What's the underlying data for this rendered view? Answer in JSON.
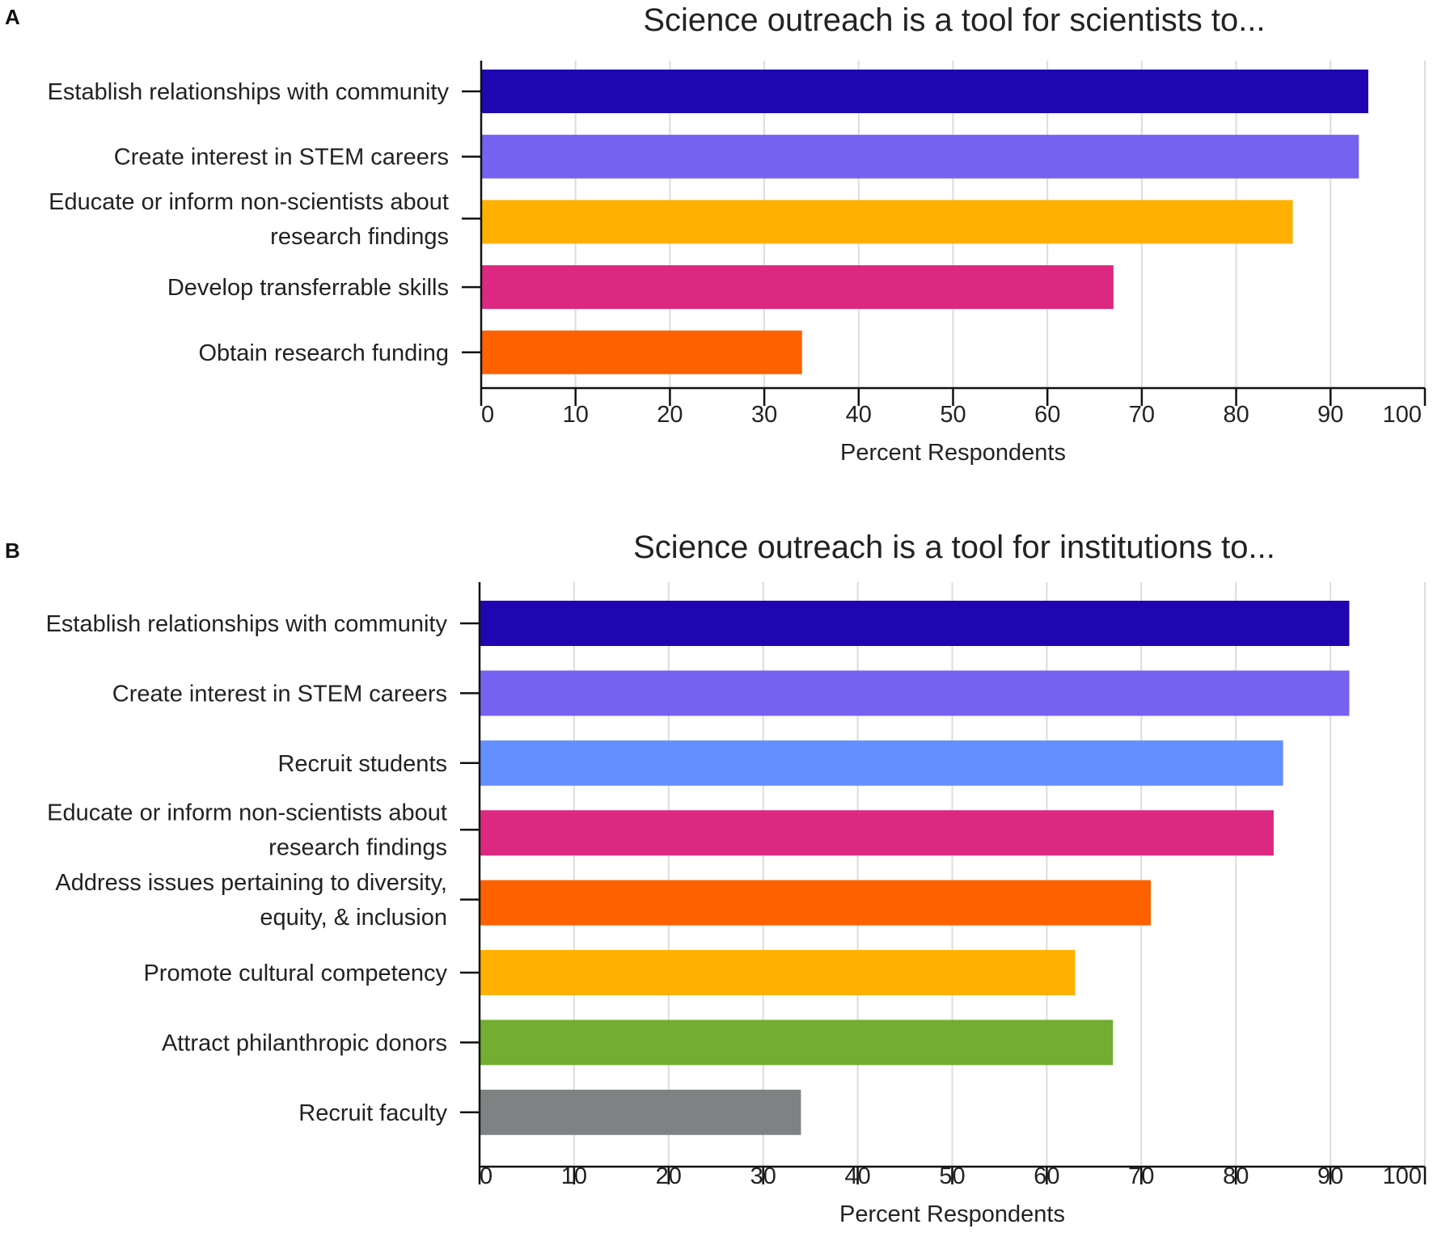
{
  "chart_data": [
    {
      "panel": "A",
      "type": "bar",
      "orientation": "horizontal",
      "title": "Science outreach is a tool for scientists to...",
      "xlabel": "Percent Respondents",
      "ylabel": "",
      "xlim": [
        0,
        100
      ],
      "xticks": [
        "0",
        "10",
        "20",
        "30",
        "40",
        "50",
        "60",
        "70",
        "80",
        "90",
        "100"
      ],
      "grid": "vertical",
      "categories": [
        [
          "Establish relationships with community"
        ],
        [
          "Create interest in STEM careers"
        ],
        [
          "Educate or inform non-scientists about",
          "research findings"
        ],
        [
          "Develop transferrable skills"
        ],
        [
          "Obtain research funding"
        ]
      ],
      "values": [
        94,
        93,
        86,
        67,
        34
      ],
      "colors": [
        "#1f06b0",
        "#7661f0",
        "#ffb000",
        "#dc2880",
        "#fe6100"
      ]
    },
    {
      "panel": "B",
      "type": "bar",
      "orientation": "horizontal",
      "title": "Science outreach is a tool for institutions to...",
      "xlabel": "Percent Respondents",
      "ylabel": "",
      "xlim": [
        0,
        100
      ],
      "xticks": [
        "0",
        "10",
        "20",
        "30",
        "40",
        "50",
        "60",
        "70",
        "80",
        "90",
        "100"
      ],
      "grid": "vertical",
      "categories": [
        [
          "Establish relationships with community"
        ],
        [
          "Create interest in STEM careers"
        ],
        [
          "Recruit students"
        ],
        [
          "Educate or inform non-scientists about",
          "research findings"
        ],
        [
          "Address issues pertaining to diversity,",
          "equity, & inclusion"
        ],
        [
          "Promote cultural competency"
        ],
        [
          "Attract philanthropic donors"
        ],
        [
          "Recruit faculty"
        ]
      ],
      "values": [
        92,
        92,
        85,
        84,
        71,
        63,
        67,
        34
      ],
      "colors": [
        "#1f06b0",
        "#7661f0",
        "#648fff",
        "#dc2880",
        "#fe6100",
        "#ffb000",
        "#72ae31",
        "#7f8283"
      ]
    }
  ]
}
